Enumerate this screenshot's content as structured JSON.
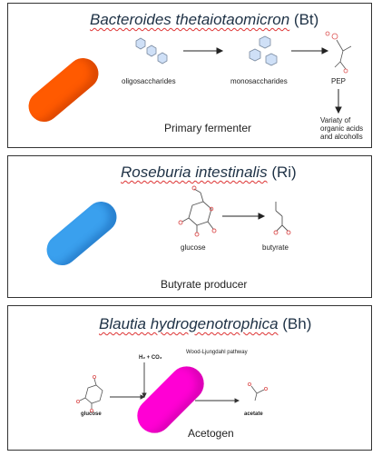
{
  "colors": {
    "bt_bacterium": "#ff5a00",
    "ri_bacterium": "#3aa0ee",
    "bh_bacterium": "#ff00d4",
    "title_text": "#1f3246"
  },
  "panels": {
    "bt": {
      "title_species": "Bacteroides thetaiotaomicron",
      "title_abbrev": "(Bt)",
      "labels": {
        "oligosaccharides": "oligosaccharides",
        "monosaccharides": "monosaccharides",
        "pep": "PEP",
        "products_1": "Variaty of",
        "products_2": "organic acids",
        "products_3": "and alcoholls"
      },
      "role": "Primary fermenter"
    },
    "ri": {
      "title_species": "Roseburia intestinalis",
      "title_abbrev": "(Ri)",
      "labels": {
        "glucose": "glucose",
        "butyrate": "butyrate"
      },
      "role": "Butyrate producer"
    },
    "bh": {
      "title_species": "Blautia hydrogenotrophica",
      "title_abbrev": "(Bh)",
      "labels": {
        "gases": "H₂ + CO₂",
        "pathway": "Wood-Ljungdahl pathway",
        "glucose": "glucose",
        "acetate": "acetate"
      },
      "role": "Acetogen"
    }
  }
}
